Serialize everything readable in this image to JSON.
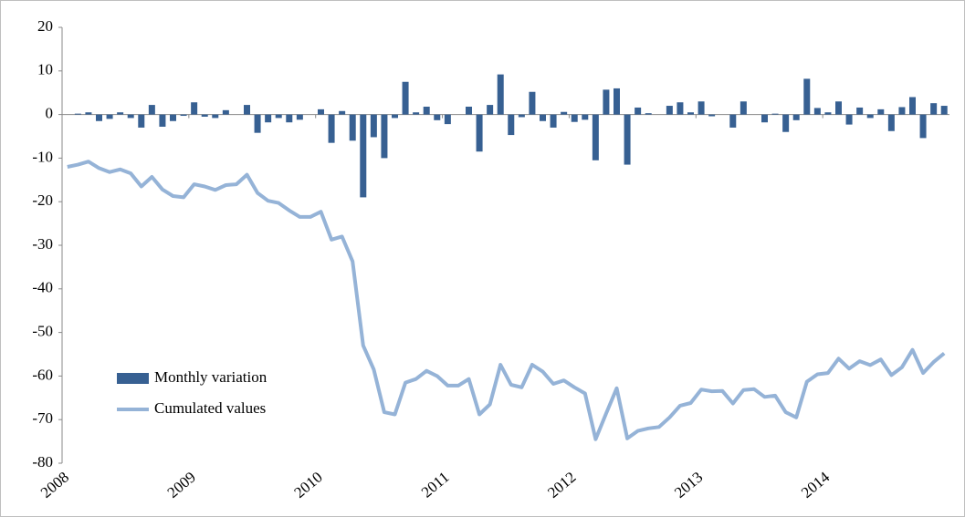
{
  "chart_data": {
    "type": "bar+line",
    "categories": [
      "2008",
      null,
      null,
      null,
      null,
      null,
      null,
      null,
      null,
      null,
      null,
      null,
      "2009",
      null,
      null,
      null,
      null,
      null,
      null,
      null,
      null,
      null,
      null,
      null,
      "2010",
      null,
      null,
      null,
      null,
      null,
      null,
      null,
      null,
      null,
      null,
      null,
      "2011",
      null,
      null,
      null,
      null,
      null,
      null,
      null,
      null,
      null,
      null,
      null,
      "2012",
      null,
      null,
      null,
      null,
      null,
      null,
      null,
      null,
      null,
      null,
      null,
      "2013",
      null,
      null,
      null,
      null,
      null,
      null,
      null,
      null,
      null,
      null,
      null,
      "2014",
      null,
      null,
      null,
      null,
      null,
      null,
      null,
      null,
      null,
      null,
      null
    ],
    "series": [
      {
        "name": "Monthly variation",
        "type": "bar",
        "color": "#376092",
        "values": [
          0,
          0.2,
          0.5,
          -1.5,
          -1,
          0.5,
          -0.8,
          -3,
          2.2,
          -2.8,
          -1.5,
          -0.3,
          2.8,
          -0.5,
          -0.8,
          1,
          0,
          2.2,
          -4.2,
          -1.8,
          -0.8,
          -1.8,
          -1.2,
          0,
          1.2,
          -6.5,
          0.8,
          -6,
          -19,
          -5.2,
          -10,
          -0.8,
          7.5,
          0.5,
          1.8,
          -1.3,
          -2.2,
          0,
          1.8,
          -8.5,
          2.2,
          9.2,
          -4.7,
          -0.6,
          5.2,
          -1.5,
          -3,
          0.6,
          -1.7,
          -1.2,
          -10.5,
          5.7,
          6,
          -11.5,
          1.6,
          0.3,
          0,
          2,
          2.8,
          0.5,
          3,
          -0.4,
          0,
          -3,
          3,
          0,
          -1.8,
          0.2,
          -4,
          -1.3,
          8.2,
          1.5,
          0.5,
          3,
          -2.3,
          1.6,
          -0.8,
          1.2,
          -3.8,
          1.7,
          4,
          -5.4,
          2.6,
          2
        ]
      },
      {
        "name": "Cumulated values",
        "type": "line",
        "color": "#95b3d7",
        "values": [
          -12,
          -11.5,
          -10.8,
          -12.3,
          -13.2,
          -12.6,
          -13.5,
          -16.5,
          -14.3,
          -17.2,
          -18.7,
          -19,
          -16,
          -16.5,
          -17.3,
          -16.2,
          -16,
          -13.8,
          -18,
          -19.8,
          -20.3,
          -22,
          -23.5,
          -23.5,
          -22.3,
          -28.7,
          -28,
          -33.7,
          -53,
          -58.5,
          -68.3,
          -68.8,
          -61.5,
          -60.7,
          -58.8,
          -60,
          -62.2,
          -62.2,
          -60.7,
          -68.8,
          -66.5,
          -57.4,
          -62,
          -62.6,
          -57.4,
          -59,
          -61.8,
          -61,
          -62.6,
          -64,
          -74.5,
          -68.6,
          -62.8,
          -74.3,
          -72.6,
          -72,
          -71.7,
          -69.5,
          -66.8,
          -66.2,
          -63.1,
          -63.5,
          -63.4,
          -66.3,
          -63.2,
          -63,
          -64.8,
          -64.5,
          -68.3,
          -69.5,
          -61.3,
          -59.6,
          -59.3,
          -56,
          -58.3,
          -56.6,
          -57.5,
          -56.2,
          -59.8,
          -58,
          -54,
          -59.3,
          -56.8,
          -54.8
        ]
      }
    ],
    "ylim": [
      -80,
      20
    ],
    "yticks": [
      20,
      10,
      0,
      -10,
      -20,
      -30,
      -40,
      -50,
      -60,
      -70,
      -80
    ],
    "legend": "lower left"
  }
}
